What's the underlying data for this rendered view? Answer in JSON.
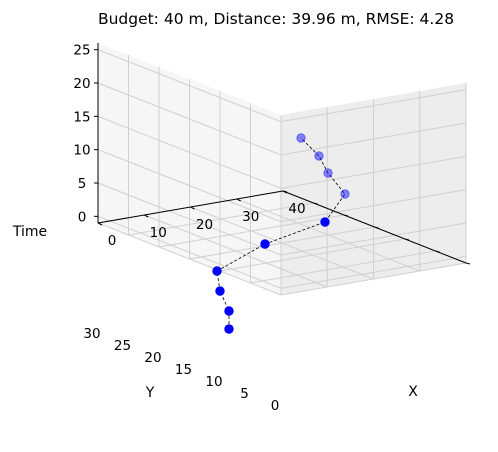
{
  "chart_data": {
    "type": "scatter",
    "title": "Budget: 40 m, Distance: 39.96 m, RMSE: 4.28",
    "xlabel": "X",
    "ylabel": "Y",
    "zlabel": "Time",
    "xlim": [
      0,
      30
    ],
    "ylim": [
      0,
      40
    ],
    "zlim": [
      0,
      27
    ],
    "x_ticks": [
      "0",
      "10",
      "20",
      "30",
      "40"
    ],
    "y_ticks": [
      "0",
      "5",
      "10",
      "15",
      "20",
      "25",
      "30"
    ],
    "z_ticks": [
      "0",
      "5",
      "10",
      "15",
      "20",
      "25"
    ],
    "grid": true,
    "line_style": "dashed",
    "colors": {
      "points": "#0000ff",
      "path": "#000000",
      "grid": "#d0d0d0",
      "pane": "#f2f2f2"
    },
    "points": [
      {
        "x": 28.5,
        "y": 32.8,
        "z": 0
      },
      {
        "x": 28.8,
        "y": 30.5,
        "z": 2.5
      },
      {
        "x": 27.5,
        "y": 27.0,
        "z": 4
      },
      {
        "x": 26.5,
        "y": 25.5,
        "z": 6
      },
      {
        "x": 22.0,
        "y": 20.0,
        "z": 8
      },
      {
        "x": 10.0,
        "y": 12.5,
        "z": 12
      },
      {
        "x": 4.0,
        "y": 7.0,
        "z": 16
      },
      {
        "x": 3.5,
        "y": 5.5,
        "z": 20
      },
      {
        "x": 4.0,
        "y": 3.0,
        "z": 22
      },
      {
        "x": 5.0,
        "y": 1.5,
        "z": 24
      }
    ]
  }
}
